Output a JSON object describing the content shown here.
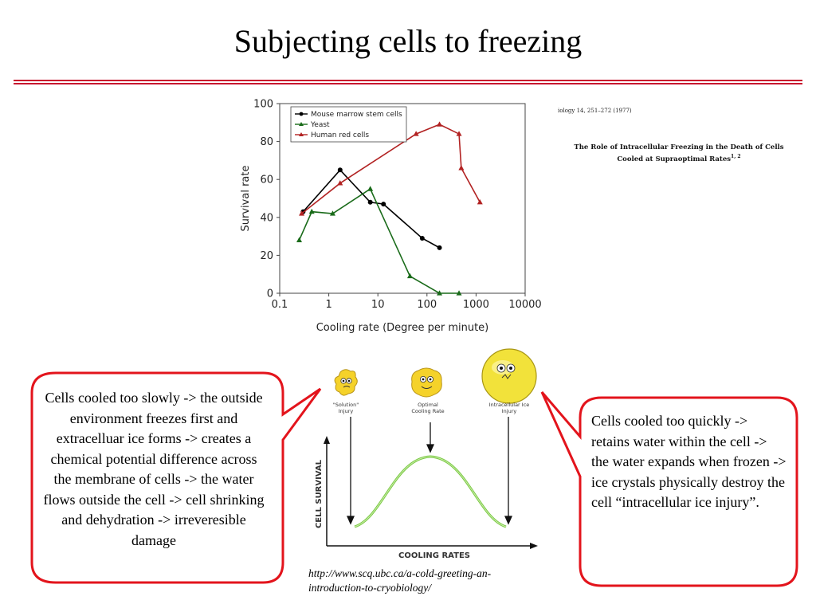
{
  "slide": {
    "title": "Subjecting cells to freezing"
  },
  "citation": {
    "journal_line": "iology 14, 251–272 (1977)",
    "paper_title_line1": "The Role of Intracellular Freezing in the Death of Cells",
    "paper_title_line2": "Cooled at Supraoptimal Rates",
    "paper_title_sup": "1, 2"
  },
  "chart_data": {
    "type": "line",
    "xlabel": "Cooling rate (Degree per minute)",
    "ylabel": "Survival rate",
    "xscale": "log",
    "xlim": [
      0.1,
      10000
    ],
    "ylim": [
      0,
      100
    ],
    "xticks": [
      "0.1",
      "1",
      "10",
      "100",
      "1000",
      "10000"
    ],
    "yticks": [
      "0",
      "20",
      "40",
      "60",
      "80",
      "100"
    ],
    "legend_position": "top-left",
    "series": [
      {
        "name": "Mouse marrow stem cells",
        "color": "#000000",
        "marker": "circle",
        "x": [
          0.3,
          1.7,
          7,
          13,
          80,
          180
        ],
        "y": [
          43,
          65,
          48,
          47,
          29,
          24
        ]
      },
      {
        "name": "Yeast",
        "color": "#1a6b1a",
        "marker": "triangle",
        "x": [
          0.25,
          0.45,
          1.2,
          7,
          45,
          180,
          450
        ],
        "y": [
          28,
          43,
          42,
          55,
          9,
          0,
          0
        ]
      },
      {
        "name": "Human red cells",
        "color": "#b22222",
        "marker": "triangle",
        "x": [
          0.28,
          1.7,
          60,
          180,
          450,
          500,
          1200
        ],
        "y": [
          42,
          58,
          84,
          89,
          84,
          66,
          48
        ]
      }
    ]
  },
  "diagram": {
    "label_solution_line1": "\"Solution\"",
    "label_solution_line2": "Injury",
    "label_optimal_line1": "Optimal",
    "label_optimal_line2": "Cooling Rate",
    "label_intracellular_line1": "Intracellular Ice",
    "label_intracellular_line2": "Injury",
    "y_axis_label": "CELL SURVIVAL",
    "x_axis_label": "COOLING RATES"
  },
  "callouts": {
    "left": "Cells cooled too slowly -> the outside environment freezes first and extracelluar ice forms -> creates a chemical potential difference across the membrane of cells -> the water flows outside the cell ->  cell shrinking and dehydration -> irreveresible damage",
    "right": "Cells cooled too quickly -> retains water within the cell -> the water expands when frozen -> ice crystals physically destroy the cell “intracellular ice injury”."
  },
  "source": {
    "url": "http://www.scq.ubc.ca/a-cold-greeting-an-introduction-to-cryobiology/"
  }
}
